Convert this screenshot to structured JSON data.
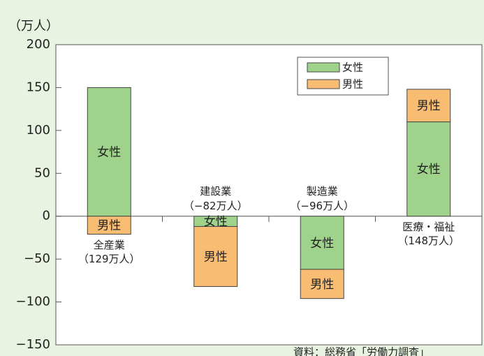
{
  "chart_data": {
    "type": "bar",
    "stacked": true,
    "y_unit": "（万人）",
    "categories": [
      "全産業",
      "建設業",
      "製造業",
      "医療・福祉"
    ],
    "category_notes": [
      "（129万人）",
      "（−82万人）",
      "（−96万人）",
      "（148万人）"
    ],
    "series": [
      {
        "name": "女性",
        "color": "#9fd38c",
        "values": [
          150,
          -12,
          -62,
          110
        ]
      },
      {
        "name": "男性",
        "color": "#f8bd72",
        "values": [
          -21,
          -70,
          -34,
          38
        ]
      }
    ],
    "ylim": [
      -150,
      200
    ],
    "yticks": [
      {
        "value": -150,
        "label": "−150"
      },
      {
        "value": -100,
        "label": "−100"
      },
      {
        "value": -50,
        "label": "−50"
      },
      0,
      50,
      100,
      150,
      200
    ],
    "legend": "top-right",
    "source": "資料：総務省「労働力調査」"
  }
}
